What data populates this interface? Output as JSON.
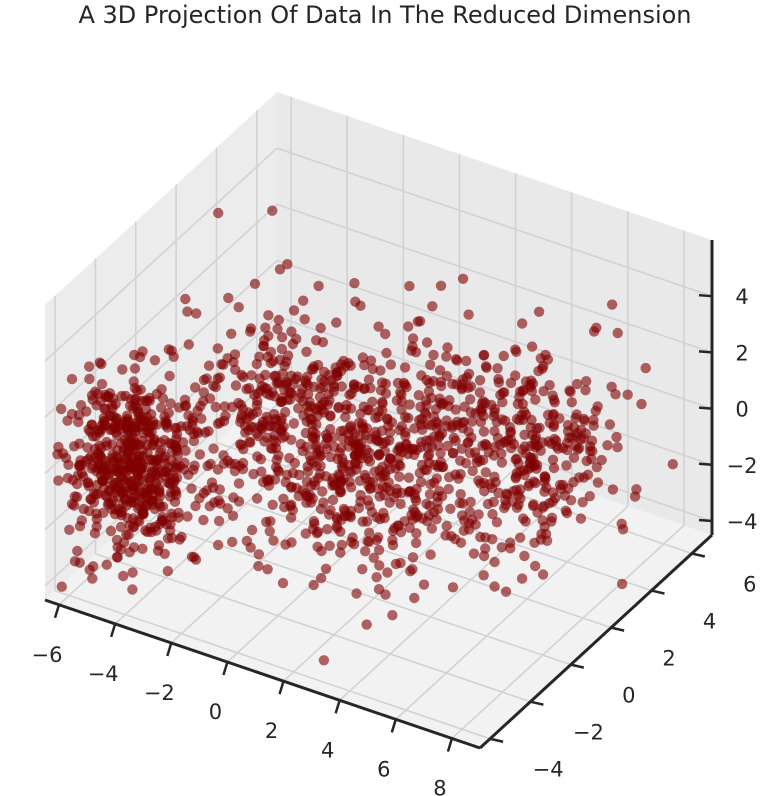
{
  "chart_data": {
    "type": "scatter",
    "projection": "3d",
    "title": "A 3D Projection Of Data In The Reduced Dimension",
    "xlabel": "",
    "ylabel": "",
    "zlabel": "",
    "x_ticks": [
      "−6",
      "−4",
      "−2",
      "0",
      "2",
      "4",
      "6",
      "8"
    ],
    "y_ticks": [
      "−4",
      "−2",
      "0",
      "2",
      "4",
      "6"
    ],
    "z_ticks": [
      "−4",
      "−2",
      "0",
      "2",
      "4"
    ],
    "xlim": [
      -6.5,
      9
    ],
    "ylim": [
      -4.5,
      7
    ],
    "zlim": [
      -4.5,
      6
    ],
    "grid": true,
    "marker_color": "#800000",
    "marker_alpha": 0.6,
    "clusters": [
      {
        "cx": -4.5,
        "cy": -3.0,
        "cz": 0.0,
        "sx": 1.1,
        "sy": 0.7,
        "sz": 1.4,
        "n": 520
      },
      {
        "cx": -1.5,
        "cy": 0.5,
        "cz": 0.5,
        "sx": 1.8,
        "sy": 1.4,
        "sz": 1.6,
        "n": 380
      },
      {
        "cx": 2.0,
        "cy": 1.5,
        "cz": -0.5,
        "sx": 1.8,
        "sy": 2.0,
        "sz": 1.6,
        "n": 480
      },
      {
        "cx": 5.0,
        "cy": 4.0,
        "cz": -1.0,
        "sx": 1.4,
        "sy": 1.4,
        "sz": 1.5,
        "n": 260
      }
    ],
    "outliers": [
      {
        "x": -5.0,
        "y": 2.0,
        "z": 5.5
      },
      {
        "x": -3.5,
        "y": -4.3,
        "z": -1.0
      },
      {
        "x": 6.0,
        "y": 6.5,
        "z": 2.0
      },
      {
        "x": 1.5,
        "y": 4.0,
        "z": 3.8
      }
    ]
  }
}
